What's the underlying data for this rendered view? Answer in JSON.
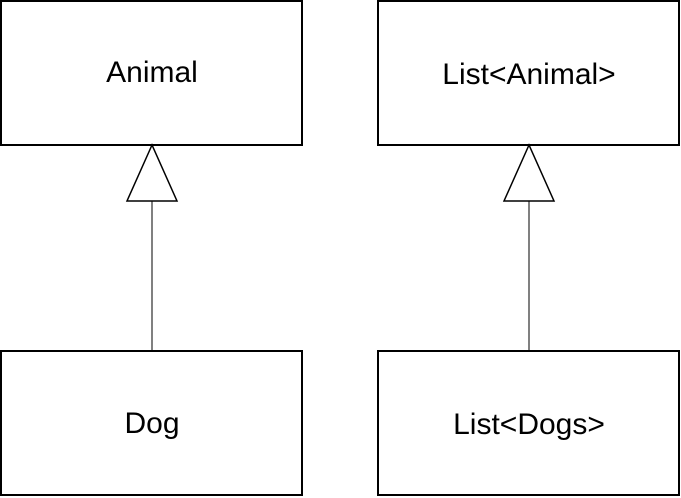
{
  "diagram": {
    "nodes": {
      "animal": {
        "label": "Animal"
      },
      "dog": {
        "label": "Dog"
      },
      "list_animal": {
        "label": "List<Animal>"
      },
      "list_dogs": {
        "label": "List<Dogs>"
      }
    },
    "edges": [
      {
        "from": "dog",
        "to": "animal",
        "type": "generalization"
      },
      {
        "from": "list_dogs",
        "to": "list_animal",
        "type": "generalization"
      }
    ]
  }
}
